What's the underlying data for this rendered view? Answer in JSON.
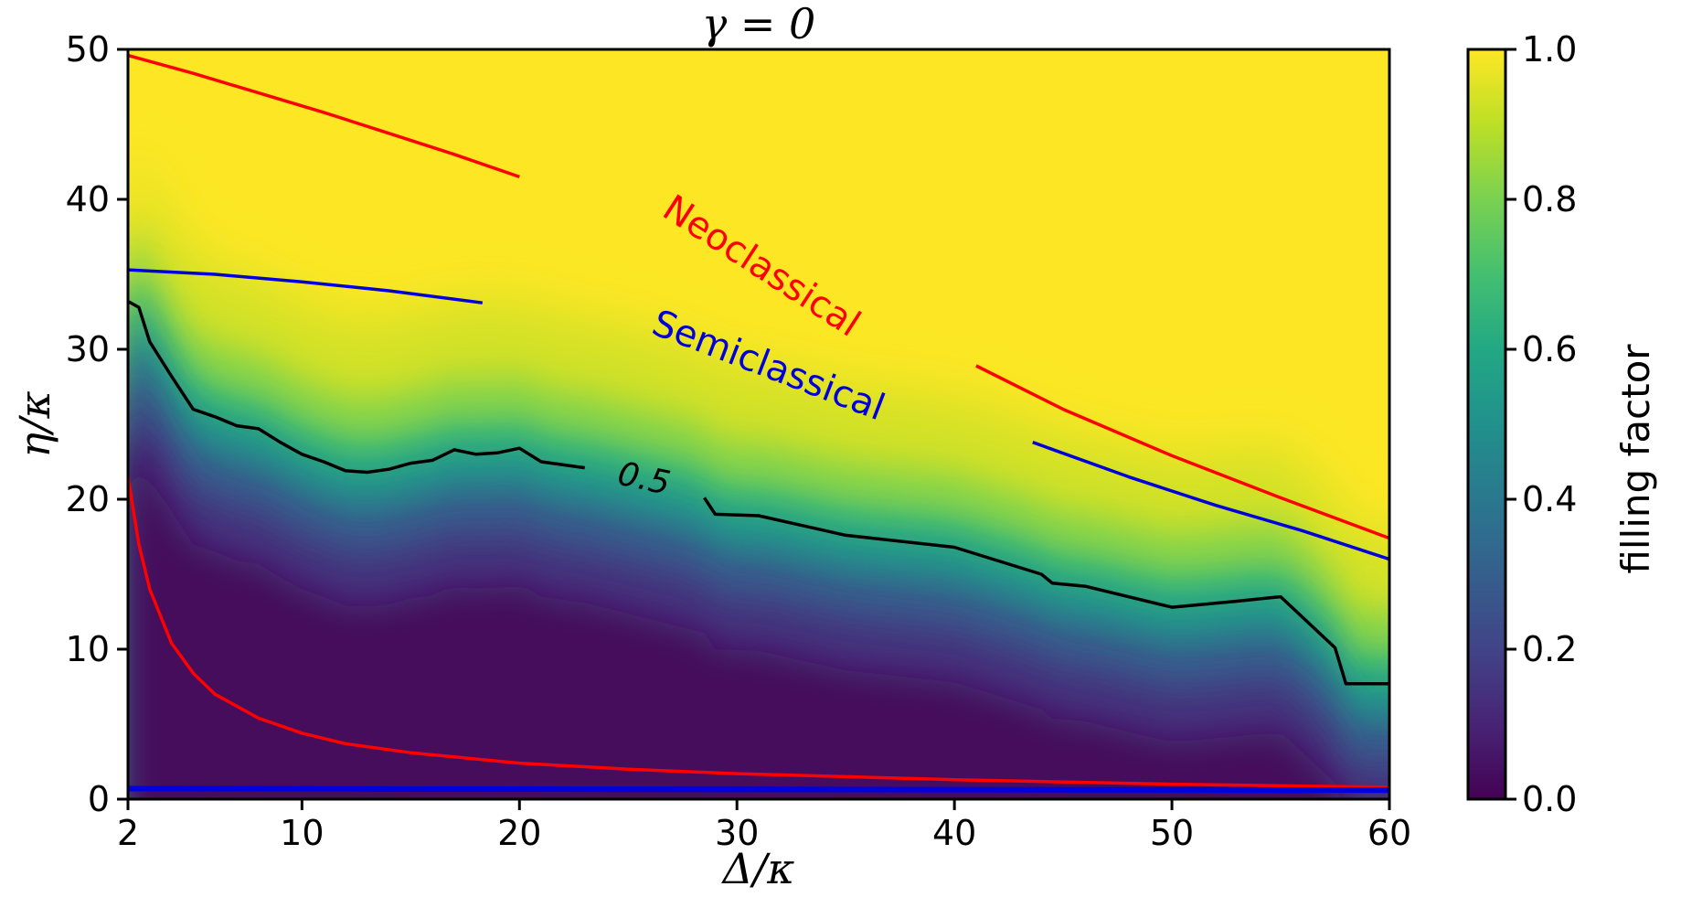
{
  "chart_data": {
    "type": "heatmap",
    "title": "γ = 0",
    "xlabel": "Δ/κ",
    "ylabel": "η/κ",
    "xlim": [
      2,
      60
    ],
    "ylim": [
      0,
      50
    ],
    "xticks": [
      2,
      10,
      20,
      30,
      40,
      50,
      60
    ],
    "yticks": [
      0,
      10,
      20,
      30,
      40,
      50
    ],
    "colorbar": {
      "label": "filling factor",
      "range": [
        0.0,
        1.0
      ],
      "ticks": [
        "0.0",
        "0.2",
        "0.4",
        "0.6",
        "0.8",
        "1.0"
      ],
      "colormap": "viridis"
    },
    "boundary_half": {
      "name": "0.5",
      "x": [
        2,
        2.5,
        3,
        4,
        5,
        6,
        7,
        8,
        9,
        10,
        11,
        12,
        13,
        14,
        15,
        16,
        17,
        18,
        19,
        20,
        21,
        23,
        28.5,
        29,
        31,
        35,
        40,
        44,
        44.5,
        46,
        50,
        53,
        55,
        57.5,
        58,
        60
      ],
      "y": [
        33.2,
        32.8,
        30.5,
        28.2,
        26.0,
        25.5,
        24.9,
        24.7,
        23.8,
        23.0,
        22.5,
        21.9,
        21.8,
        22.0,
        22.4,
        22.6,
        23.3,
        23.0,
        23.1,
        23.4,
        22.5,
        22.1,
        20.1,
        19.0,
        18.9,
        17.6,
        16.8,
        15.0,
        14.4,
        14.2,
        12.8,
        13.2,
        13.5,
        10.1,
        7.7,
        7.7
      ],
      "color": "#000000"
    },
    "neoclassical": {
      "label": "Neoclassical",
      "color": "#ff0000",
      "upper_left": {
        "x": [
          2,
          5,
          8,
          11,
          14,
          17,
          20
        ],
        "y": [
          49.6,
          48.4,
          47.1,
          45.8,
          44.4,
          43.0,
          41.5
        ]
      },
      "upper_right": {
        "x": [
          41,
          45,
          50,
          55,
          60
        ],
        "y": [
          28.9,
          26.0,
          22.9,
          20.1,
          17.4
        ]
      },
      "lower": {
        "x": [
          2,
          2.5,
          3,
          4,
          5,
          6,
          8,
          10,
          12,
          15,
          20,
          25,
          30,
          40,
          50,
          60
        ],
        "y": [
          21.5,
          17.0,
          14.0,
          10.4,
          8.4,
          7.0,
          5.4,
          4.4,
          3.7,
          3.1,
          2.4,
          2.0,
          1.7,
          1.3,
          1.0,
          0.8
        ]
      }
    },
    "semiclassical": {
      "label": "Semiclassical",
      "color": "#0000dd",
      "upper_left": {
        "x": [
          2,
          6,
          10,
          14,
          18.3
        ],
        "y": [
          35.3,
          35.0,
          34.5,
          33.9,
          33.1
        ]
      },
      "upper_right": {
        "x": [
          43.6,
          48,
          52,
          56,
          60
        ],
        "y": [
          23.8,
          21.5,
          19.6,
          17.9,
          16.0
        ]
      },
      "lower": {
        "x": [
          2,
          60
        ],
        "y": [
          0.7,
          0.6
        ]
      }
    },
    "fill_regions": {
      "high_value": 1.0,
      "low_value": 0.0
    }
  }
}
